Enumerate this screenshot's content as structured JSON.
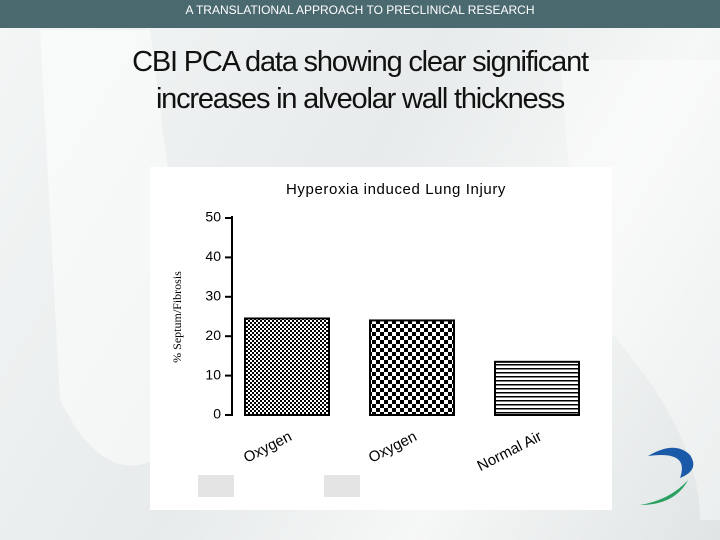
{
  "header": {
    "title": "A TRANSLATIONAL APPROACH TO PRECLINICAL RESEARCH"
  },
  "slide": {
    "title": "CBI PCA data showing clear significant increases in alveolar wall thickness"
  },
  "chart_data": {
    "type": "bar",
    "title": "Hyperoxia induced Lung Injury",
    "y_label": "% Septum/Fibrosis",
    "categories": [
      "Oxygen",
      "Oxygen",
      "Normal Air"
    ],
    "values": [
      24.5,
      24,
      13.5
    ],
    "ylim": [
      0,
      50
    ],
    "yticks": [
      0,
      10,
      20,
      30,
      40,
      50
    ],
    "grid": false
  }
}
